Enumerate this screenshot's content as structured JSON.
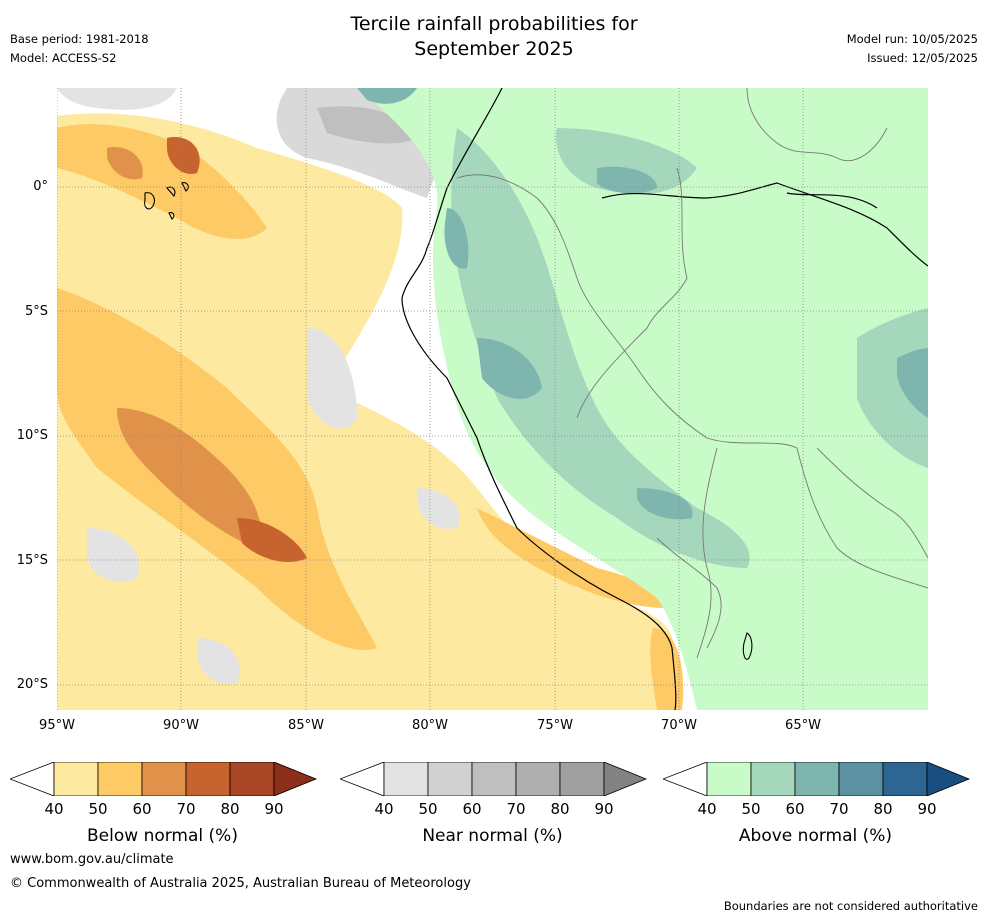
{
  "header": {
    "title_line1": "Tercile rainfall probabilities for",
    "title_line2": "September 2025",
    "base_period": "Base period: 1981-2018",
    "model": "Model: ACCESS-S2",
    "model_run": "Model run: 10/05/2025",
    "issued": "Issued: 12/05/2025"
  },
  "map": {
    "lat_labels": [
      "0°",
      "5°S",
      "10°S",
      "15°S",
      "20°S"
    ],
    "lon_labels": [
      "95°W",
      "90°W",
      "85°W",
      "80°W",
      "75°W",
      "70°W",
      "65°W"
    ],
    "lat_values": [
      0,
      -5,
      -10,
      -15,
      -20
    ],
    "lon_values": [
      -95,
      -90,
      -85,
      -80,
      -75,
      -70,
      -65
    ],
    "extent": {
      "lon_min": -95,
      "lon_max": -60,
      "lat_min": -21,
      "lat_max": 4
    }
  },
  "colorbars": [
    {
      "title": "Below normal (%)",
      "ticks": [
        "40",
        "50",
        "60",
        "70",
        "80",
        "90"
      ],
      "colors": [
        "#fee9a0",
        "#fdca65",
        "#e0924a",
        "#c6632e",
        "#a84625"
      ],
      "extend_color": "#8b2e1a"
    },
    {
      "title": "Near normal (%)",
      "ticks": [
        "40",
        "50",
        "60",
        "70",
        "80",
        "90"
      ],
      "colors": [
        "#e3e3e3",
        "#d1d1d1",
        "#bfbfbf",
        "#afafaf",
        "#a0a0a0"
      ],
      "extend_color": "#828282"
    },
    {
      "title": "Above normal (%)",
      "ticks": [
        "40",
        "50",
        "60",
        "70",
        "80",
        "90"
      ],
      "colors": [
        "#c9fbc9",
        "#a4d7bb",
        "#7fb5af",
        "#5b91a1",
        "#2e6693"
      ],
      "extend_color": "#184e80"
    }
  ],
  "footer": {
    "url": "www.bom.gov.au/climate",
    "copyright": "© Commonwealth of Australia 2025, Australian Bureau of Meteorology",
    "disclaimer": "Boundaries are not considered authoritative"
  }
}
